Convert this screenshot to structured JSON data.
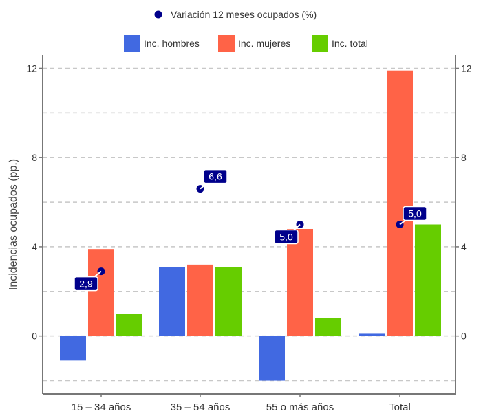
{
  "chart_data": {
    "type": "bar",
    "title": "",
    "xlabel": "",
    "ylabel": "Incidencias ocupados (pp.)",
    "ylim": [
      -2.6,
      12.6
    ],
    "yticks": [
      0,
      4,
      8,
      12
    ],
    "grid": true,
    "categories": [
      "15 – 34 años",
      "35 – 54 años",
      "55 o más años",
      "Total"
    ],
    "series": [
      {
        "name": "Inc. hombres",
        "type": "bar",
        "color": "#4169E1",
        "values": [
          -1.1,
          3.1,
          -2.0,
          0.1
        ]
      },
      {
        "name": "Inc. mujeres",
        "type": "bar",
        "color": "#FF6347",
        "values": [
          3.9,
          3.2,
          4.8,
          11.9
        ]
      },
      {
        "name": "Inc. total",
        "type": "bar",
        "color": "#66CD00",
        "values": [
          1.0,
          3.1,
          0.8,
          5.0
        ]
      }
    ],
    "points": {
      "name": "Variación 12 meses ocupados (%)",
      "type": "scatter",
      "color": "#00008B",
      "values": [
        2.9,
        6.6,
        5.0,
        5.0
      ],
      "labels": [
        "2,9",
        "6,6",
        "5,0",
        "5,0"
      ]
    },
    "legend_placement": "top"
  }
}
